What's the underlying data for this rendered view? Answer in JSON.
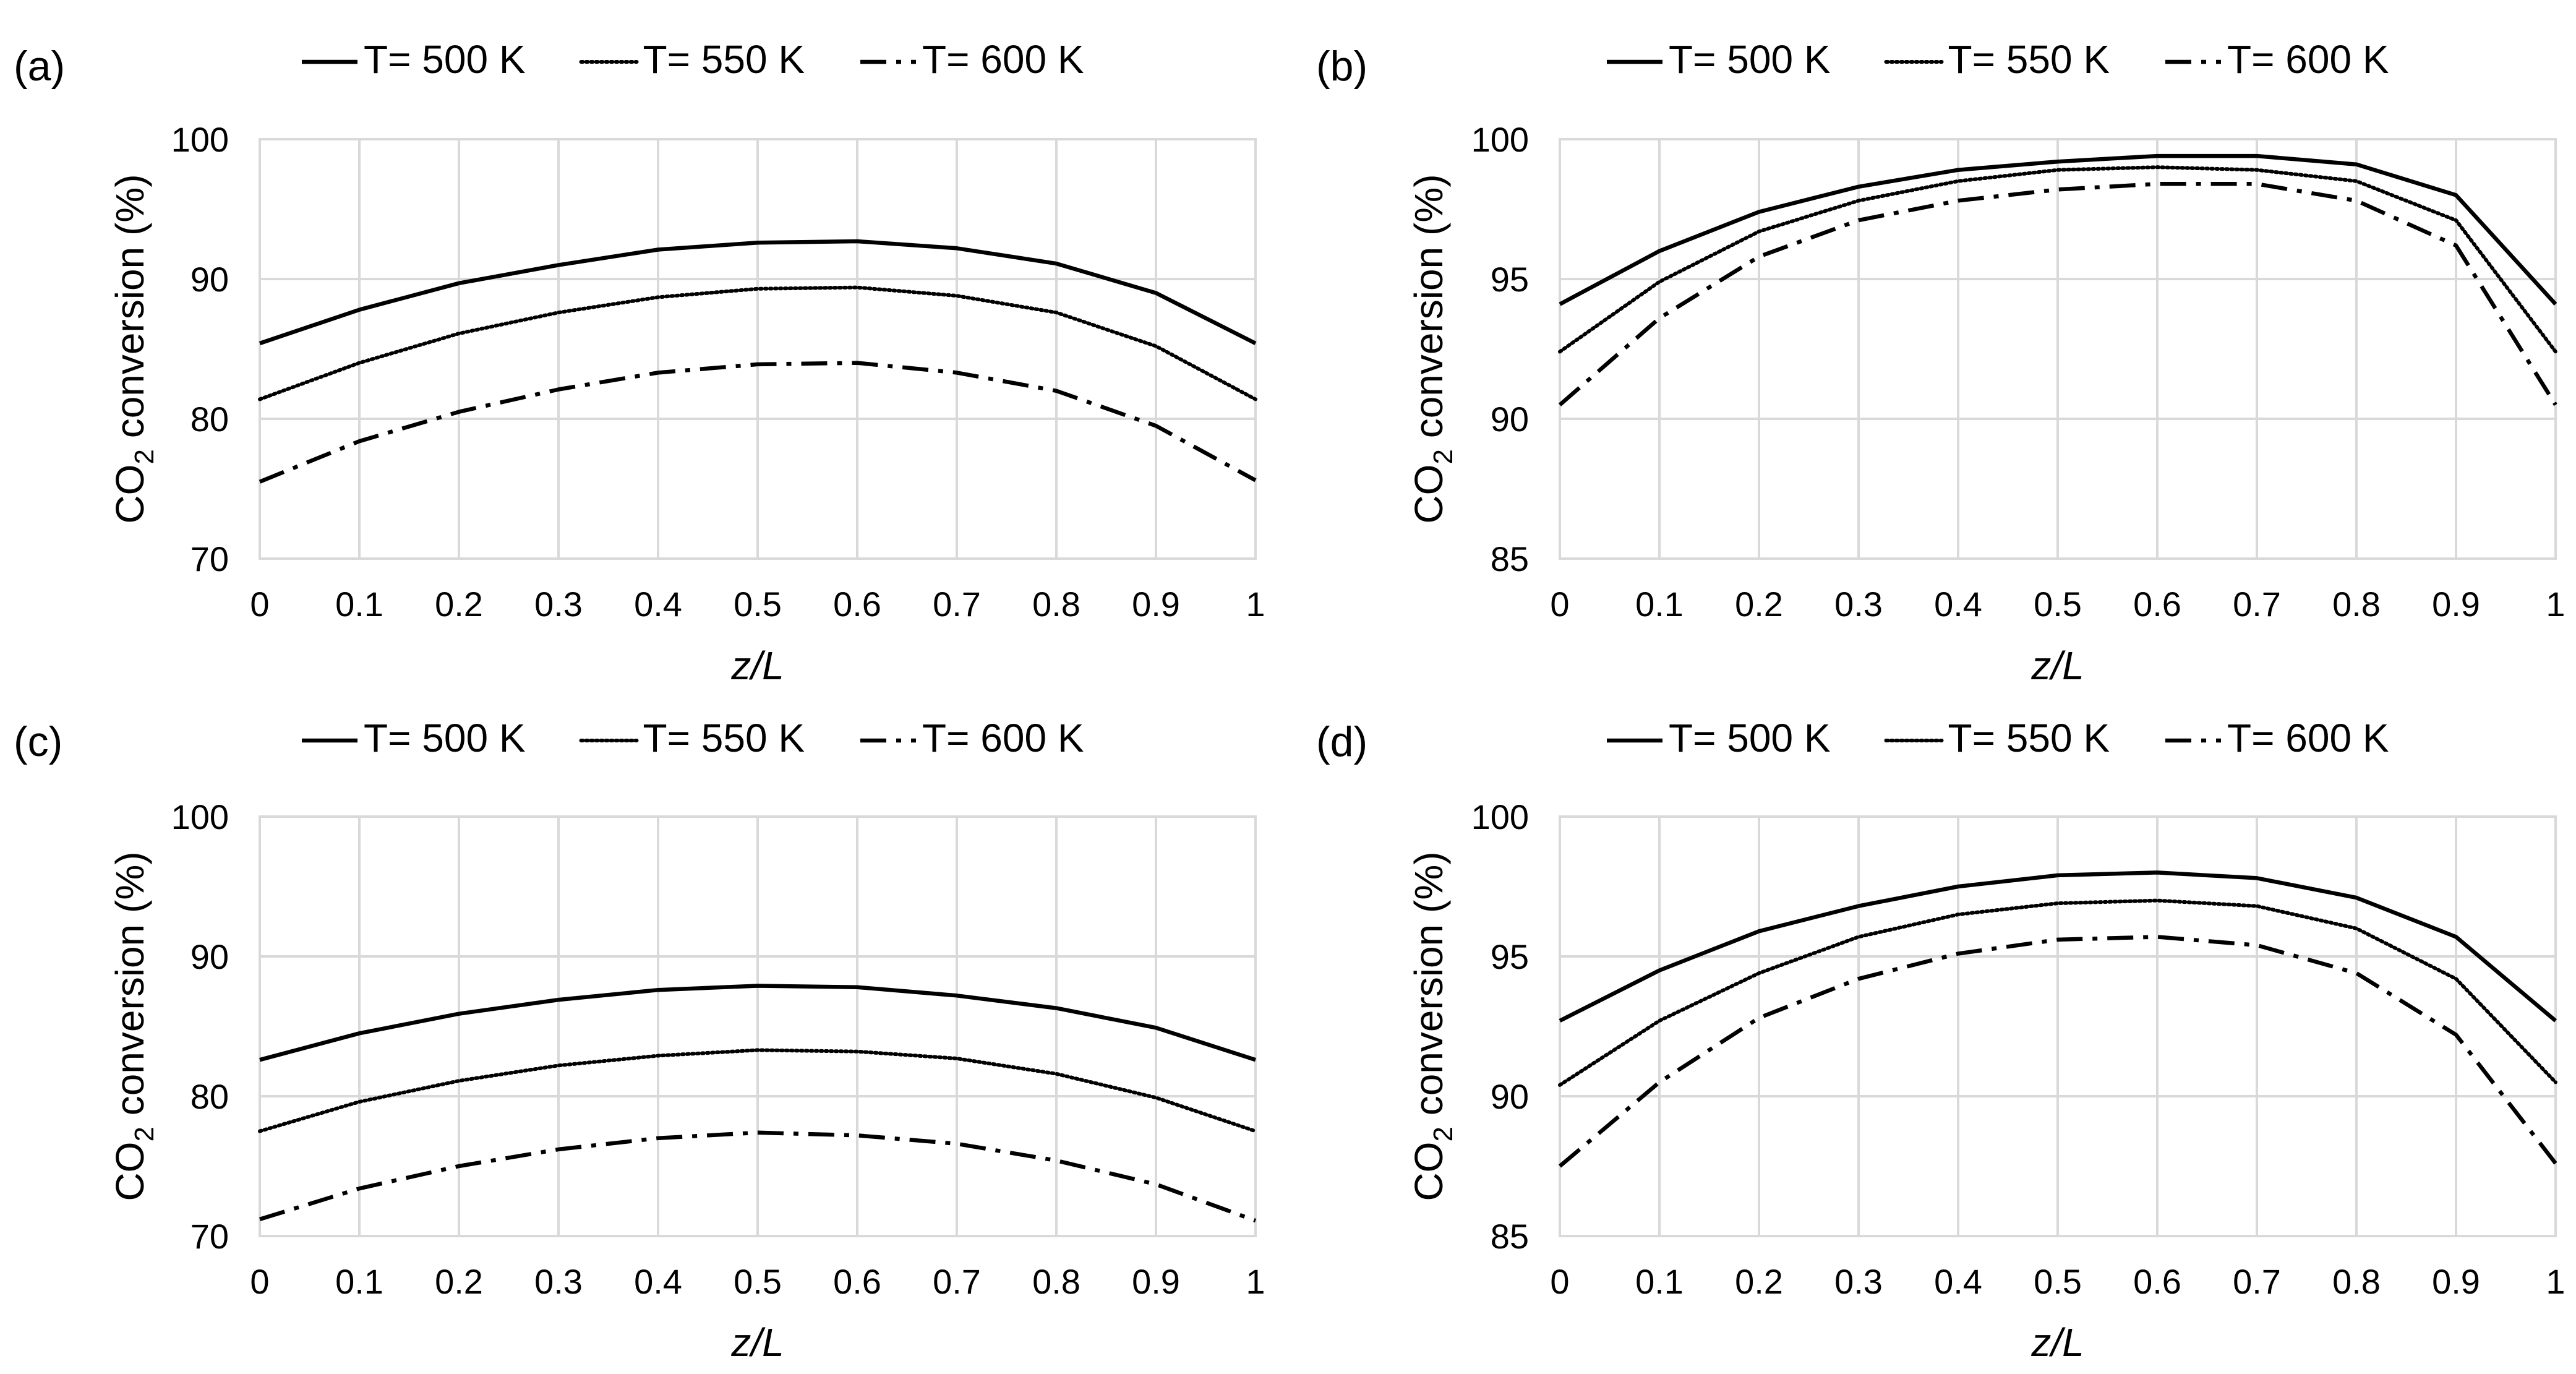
{
  "styles": {
    "solid": {
      "dash": "",
      "width": 6.5
    },
    "dotted": {
      "dash": "3 5",
      "width": 6
    },
    "dashdot": {
      "dash": "42 16 8 16",
      "width": 6.5
    }
  },
  "colors": {
    "line": "#000000",
    "grid": "#d9d9d9",
    "background": "#ffffff"
  },
  "chart_data": [
    {
      "panel": "(a)",
      "type": "line",
      "title": "",
      "xlabel": "z/L",
      "ylabel_parts": [
        "CO",
        "2",
        " conversion (%)"
      ],
      "xlim": [
        0,
        1
      ],
      "ylim": [
        70,
        100
      ],
      "yticks": [
        70,
        80,
        90,
        100
      ],
      "xticks": [
        0,
        0.1,
        0.2,
        0.3,
        0.4,
        0.5,
        0.6,
        0.7,
        0.8,
        0.9,
        1
      ],
      "x": [
        0,
        0.1,
        0.2,
        0.3,
        0.4,
        0.5,
        0.6,
        0.7,
        0.8,
        0.9,
        1
      ],
      "grid": true,
      "legend_position": "top",
      "series": [
        {
          "name": "T= 500 K",
          "style": "solid",
          "values": [
            85.4,
            87.8,
            89.7,
            91.0,
            92.1,
            92.6,
            92.7,
            92.2,
            91.1,
            89.0,
            85.4
          ]
        },
        {
          "name": "T= 550 K",
          "style": "dotted",
          "values": [
            81.4,
            84.0,
            86.1,
            87.6,
            88.7,
            89.3,
            89.4,
            88.8,
            87.6,
            85.2,
            81.4
          ]
        },
        {
          "name": "T= 600 K",
          "style": "dashdot",
          "values": [
            75.5,
            78.4,
            80.5,
            82.1,
            83.3,
            83.9,
            84.0,
            83.3,
            82.0,
            79.5,
            75.6
          ]
        }
      ]
    },
    {
      "panel": "(b)",
      "type": "line",
      "title": "",
      "xlabel": "z/L",
      "ylabel_parts": [
        "CO",
        "2",
        " conversion (%)"
      ],
      "xlim": [
        0,
        1
      ],
      "ylim": [
        85,
        100
      ],
      "yticks": [
        85,
        90,
        95,
        100
      ],
      "xticks": [
        0,
        0.1,
        0.2,
        0.3,
        0.4,
        0.5,
        0.6,
        0.7,
        0.8,
        0.9,
        1
      ],
      "x": [
        0,
        0.1,
        0.2,
        0.3,
        0.4,
        0.5,
        0.6,
        0.7,
        0.8,
        0.9,
        1
      ],
      "grid": true,
      "legend_position": "top",
      "series": [
        {
          "name": "T= 500 K",
          "style": "solid",
          "values": [
            94.1,
            96.0,
            97.4,
            98.3,
            98.9,
            99.2,
            99.4,
            99.4,
            99.1,
            98.0,
            94.1
          ]
        },
        {
          "name": "T= 550 K",
          "style": "dotted",
          "values": [
            92.4,
            94.9,
            96.7,
            97.8,
            98.5,
            98.9,
            99.0,
            98.9,
            98.5,
            97.1,
            92.4
          ]
        },
        {
          "name": "T= 600 K",
          "style": "dashdot",
          "values": [
            90.5,
            93.6,
            95.8,
            97.1,
            97.8,
            98.2,
            98.4,
            98.4,
            97.8,
            96.2,
            90.5
          ]
        }
      ]
    },
    {
      "panel": "(c)",
      "type": "line",
      "title": "",
      "xlabel": "z/L",
      "ylabel_parts": [
        "CO",
        "2",
        " conversion (%)"
      ],
      "xlim": [
        0,
        1
      ],
      "ylim": [
        70,
        100
      ],
      "yticks": [
        70,
        80,
        90,
        100
      ],
      "xticks": [
        0,
        0.1,
        0.2,
        0.3,
        0.4,
        0.5,
        0.6,
        0.7,
        0.8,
        0.9,
        1
      ],
      "x": [
        0,
        0.1,
        0.2,
        0.3,
        0.4,
        0.5,
        0.6,
        0.7,
        0.8,
        0.9,
        1
      ],
      "grid": true,
      "legend_position": "top",
      "series": [
        {
          "name": "T= 500 K",
          "style": "solid",
          "values": [
            82.6,
            84.5,
            85.9,
            86.9,
            87.6,
            87.9,
            87.8,
            87.2,
            86.3,
            84.9,
            82.6
          ]
        },
        {
          "name": "T= 550 K",
          "style": "dotted",
          "values": [
            77.5,
            79.6,
            81.1,
            82.2,
            82.9,
            83.3,
            83.2,
            82.7,
            81.6,
            79.9,
            77.5
          ]
        },
        {
          "name": "T= 600 K",
          "style": "dashdot",
          "values": [
            71.2,
            73.4,
            75.0,
            76.2,
            77.0,
            77.4,
            77.2,
            76.6,
            75.4,
            73.7,
            71.1
          ]
        }
      ]
    },
    {
      "panel": "(d)",
      "type": "line",
      "title": "",
      "xlabel": "z/L",
      "ylabel_parts": [
        "CO",
        "2",
        " conversion (%)"
      ],
      "xlim": [
        0,
        1
      ],
      "ylim": [
        85,
        100
      ],
      "yticks": [
        85,
        90,
        95,
        100
      ],
      "xticks": [
        0,
        0.1,
        0.2,
        0.3,
        0.4,
        0.5,
        0.6,
        0.7,
        0.8,
        0.9,
        1
      ],
      "x": [
        0,
        0.1,
        0.2,
        0.3,
        0.4,
        0.5,
        0.6,
        0.7,
        0.8,
        0.9,
        1
      ],
      "grid": true,
      "legend_position": "top",
      "series": [
        {
          "name": "T= 500 K",
          "style": "solid",
          "values": [
            92.7,
            94.5,
            95.9,
            96.8,
            97.5,
            97.9,
            98.0,
            97.8,
            97.1,
            95.7,
            92.7
          ]
        },
        {
          "name": "T= 550 K",
          "style": "dotted",
          "values": [
            90.4,
            92.7,
            94.4,
            95.7,
            96.5,
            96.9,
            97.0,
            96.8,
            96.0,
            94.2,
            90.5
          ]
        },
        {
          "name": "T= 600 K",
          "style": "dashdot",
          "values": [
            87.5,
            90.5,
            92.8,
            94.2,
            95.1,
            95.6,
            95.7,
            95.4,
            94.4,
            92.2,
            87.6
          ]
        }
      ]
    }
  ]
}
